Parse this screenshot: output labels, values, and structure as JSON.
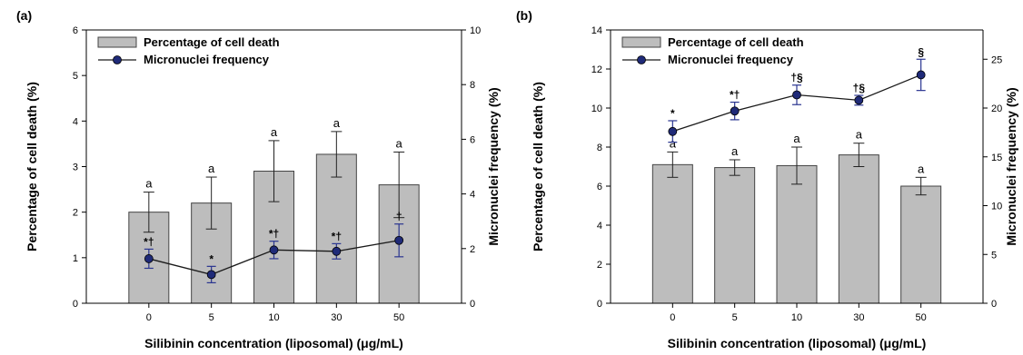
{
  "colors": {
    "bar_fill": "#bdbdbd",
    "bar_stroke": "#444444",
    "line": "#1a1a1a",
    "marker_fill": "#1f2a78",
    "errbar_line": "#2a3590",
    "axis": "#000000"
  },
  "chart_data": [
    {
      "type": "bar+line",
      "panel_label": "(a)",
      "categories": [
        "0",
        "5",
        "10",
        "30",
        "50"
      ],
      "xlabel": "Silibinin concentration (liposomal) (μg/mL)",
      "ylabel_left": "Percentage of cell death (%)",
      "ylabel_right": "Micronuclei frequency (%)",
      "ylim_left": [
        0,
        6
      ],
      "yticks_left": [
        "0",
        "1",
        "2",
        "3",
        "4",
        "5",
        "6"
      ],
      "ylim_right": [
        0,
        10
      ],
      "yticks_right": [
        "0",
        "2",
        "4",
        "6",
        "8",
        "10"
      ],
      "legend": [
        "Percentage of cell death",
        "Micronuclei frequency"
      ],
      "legend_position": "top-left",
      "series": [
        {
          "name": "Percentage of cell death",
          "kind": "bar",
          "axis": "left",
          "values": [
            2.0,
            2.2,
            2.9,
            3.27,
            2.6
          ],
          "errors": [
            0.44,
            0.57,
            0.67,
            0.5,
            0.72
          ],
          "labels": [
            "a",
            "a",
            "a",
            "a",
            "a"
          ]
        },
        {
          "name": "Micronuclei frequency",
          "kind": "line",
          "axis": "right",
          "values": [
            1.63,
            1.05,
            1.95,
            1.9,
            2.3
          ],
          "errors": [
            0.35,
            0.3,
            0.32,
            0.28,
            0.6
          ],
          "labels": [
            "*†",
            "*",
            "*†",
            "*†",
            "†"
          ]
        }
      ]
    },
    {
      "type": "bar+line",
      "panel_label": "(b)",
      "categories": [
        "0",
        "5",
        "10",
        "30",
        "50"
      ],
      "xlabel": "Silibinin concentration (liposomal) (μg/mL)",
      "ylabel_left": "Percentage of cell death (%)",
      "ylabel_right": "Micronuclei frequency (%)",
      "ylim_left": [
        0,
        14
      ],
      "yticks_left": [
        "0",
        "2",
        "4",
        "6",
        "8",
        "10",
        "12",
        "14"
      ],
      "ylim_right": [
        0,
        28
      ],
      "yticks_right": [
        "0",
        "5",
        "10",
        "15",
        "20",
        "25"
      ],
      "legend": [
        "Percentage of cell death",
        "Micronuclei frequency"
      ],
      "legend_position": "top-left",
      "series": [
        {
          "name": "Percentage of cell death",
          "kind": "bar",
          "axis": "left",
          "values": [
            7.1,
            6.95,
            7.05,
            7.6,
            6.0
          ],
          "errors": [
            0.65,
            0.4,
            0.95,
            0.6,
            0.45
          ],
          "labels": [
            "a",
            "a",
            "a",
            "a",
            "a"
          ]
        },
        {
          "name": "Micronuclei frequency",
          "kind": "line",
          "axis": "right",
          "values": [
            17.6,
            19.7,
            21.35,
            20.8,
            23.4
          ],
          "errors": [
            1.1,
            0.9,
            1.0,
            0.5,
            1.6
          ],
          "labels": [
            "*",
            "*†",
            "†§",
            "†§",
            "§"
          ]
        }
      ]
    }
  ]
}
